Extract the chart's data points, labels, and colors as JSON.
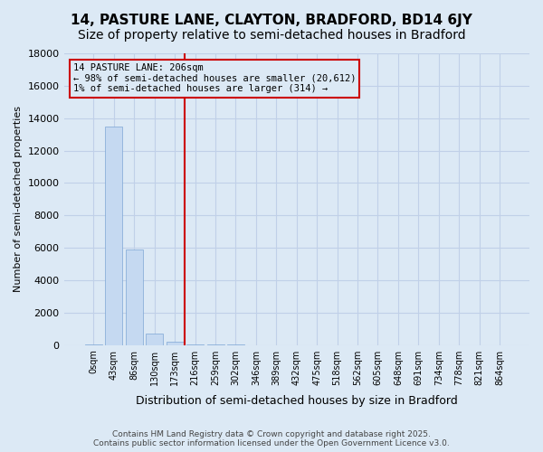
{
  "title": "14, PASTURE LANE, CLAYTON, BRADFORD, BD14 6JY",
  "subtitle": "Size of property relative to semi-detached houses in Bradford",
  "xlabel": "Distribution of semi-detached houses by size in Bradford",
  "ylabel": "Number of semi-detached properties",
  "bin_labels": [
    "0sqm",
    "43sqm",
    "86sqm",
    "130sqm",
    "173sqm",
    "216sqm",
    "259sqm",
    "302sqm",
    "346sqm",
    "389sqm",
    "432sqm",
    "475sqm",
    "518sqm",
    "562sqm",
    "605sqm",
    "648sqm",
    "691sqm",
    "734sqm",
    "778sqm",
    "821sqm",
    "864sqm"
  ],
  "bar_values": [
    50,
    13500,
    5900,
    700,
    200,
    50,
    30,
    10,
    5,
    2,
    1,
    0,
    0,
    0,
    0,
    0,
    0,
    0,
    0,
    0,
    0
  ],
  "bar_color": "#c5d9f1",
  "bar_edge_color": "#7da6d4",
  "grid_color": "#c0d0e8",
  "bg_color": "#dce9f5",
  "vline_x_index": 5,
  "vline_color": "#cc0000",
  "annotation_text": "14 PASTURE LANE: 206sqm\n← 98% of semi-detached houses are smaller (20,612)\n1% of semi-detached houses are larger (314) →",
  "annotation_box_color": "#cc0000",
  "ylim": [
    0,
    18000
  ],
  "yticks": [
    0,
    2000,
    4000,
    6000,
    8000,
    10000,
    12000,
    14000,
    16000,
    18000
  ],
  "footnote": "Contains HM Land Registry data © Crown copyright and database right 2025.\nContains public sector information licensed under the Open Government Licence v3.0.",
  "title_fontsize": 11,
  "subtitle_fontsize": 10
}
